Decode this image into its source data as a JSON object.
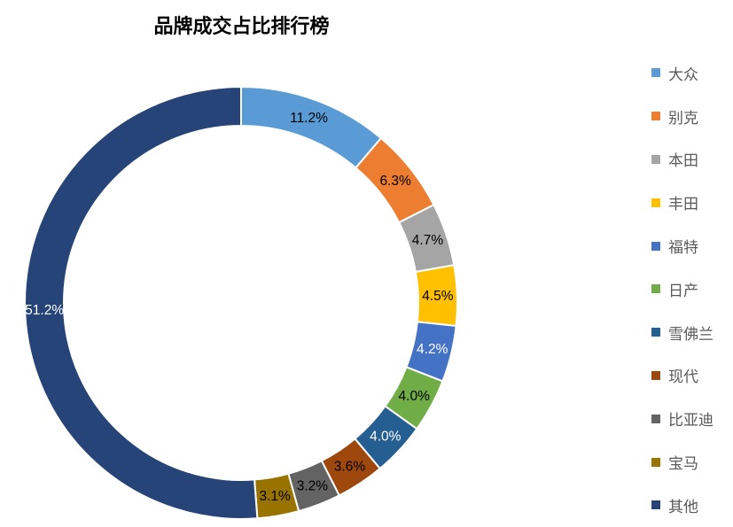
{
  "chart_data": {
    "type": "pie",
    "variant": "donut",
    "title": "品牌成交占比排行榜",
    "legend_position": "right",
    "slices": [
      {
        "name": "大众",
        "value": 11.2,
        "label": "11.2%",
        "color": "#5B9BD5",
        "label_color": "#000000"
      },
      {
        "name": "别克",
        "value": 6.3,
        "label": "6.3%",
        "color": "#ED7D31",
        "label_color": "#000000"
      },
      {
        "name": "本田",
        "value": 4.7,
        "label": "4.7%",
        "color": "#A5A5A5",
        "label_color": "#000000"
      },
      {
        "name": "丰田",
        "value": 4.5,
        "label": "4.5%",
        "color": "#FFC000",
        "label_color": "#000000"
      },
      {
        "name": "福特",
        "value": 4.2,
        "label": "4.2%",
        "color": "#4472C4",
        "label_color": "#ffffff"
      },
      {
        "name": "日产",
        "value": 4.0,
        "label": "4.0%",
        "color": "#70AD47",
        "label_color": "#000000"
      },
      {
        "name": "雪佛兰",
        "value": 4.0,
        "label": "4.0%",
        "color": "#255E91",
        "label_color": "#ffffff"
      },
      {
        "name": "现代",
        "value": 3.6,
        "label": "3.6%",
        "color": "#9E480E",
        "label_color": "#000000"
      },
      {
        "name": "比亚迪",
        "value": 3.2,
        "label": "3.2%",
        "color": "#636363",
        "label_color": "#000000"
      },
      {
        "name": "宝马",
        "value": 3.1,
        "label": "3.1%",
        "color": "#997300",
        "label_color": "#000000"
      },
      {
        "name": "其他",
        "value": 51.2,
        "label": "51.2%",
        "color": "#264478",
        "label_color": "#ffffff"
      }
    ]
  }
}
